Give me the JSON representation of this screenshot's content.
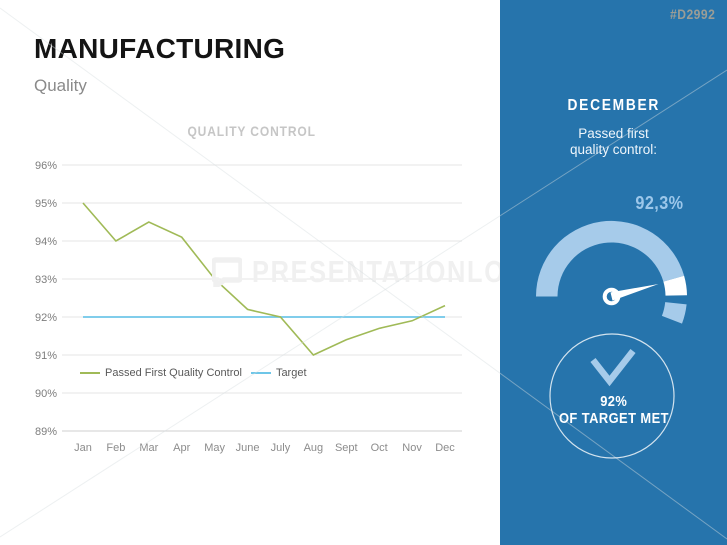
{
  "slide": {
    "title": "MANUFACTURING",
    "subtitle": "Quality",
    "watermark_text": "PRESENTATIONLOAD",
    "product_code": "#D2992"
  },
  "chart_data": {
    "type": "line",
    "title": "QUALITY CONTROL",
    "categories": [
      "Jan",
      "Feb",
      "Mar",
      "Apr",
      "May",
      "June",
      "July",
      "Aug",
      "Sept",
      "Oct",
      "Nov",
      "Dec"
    ],
    "series": [
      {
        "name": "Passed First Quality Control",
        "color": "#a0ba57",
        "values": [
          95.0,
          94.0,
          94.5,
          94.1,
          93.0,
          92.2,
          92.0,
          91.0,
          91.4,
          91.7,
          91.9,
          92.3
        ]
      },
      {
        "name": "Target",
        "color": "#6ec6e8",
        "values": [
          92,
          92,
          92,
          92,
          92,
          92,
          92,
          92,
          92,
          92,
          92,
          92
        ]
      }
    ],
    "ylim": [
      89,
      96
    ],
    "ytick_step": 1,
    "ytick_suffix": "%",
    "grid": true,
    "legend_position": "inside-bottom-left"
  },
  "panel": {
    "bg_color": "#2674ac",
    "accent_color": "#a6cbea",
    "month": "DECEMBER",
    "caption_line1": "Passed first",
    "caption_line2": "quality control:",
    "gauge_value_label": "92,3%",
    "gauge_percent": 92.3,
    "badge_value": "92%",
    "badge_label": "OF TARGET MET"
  }
}
